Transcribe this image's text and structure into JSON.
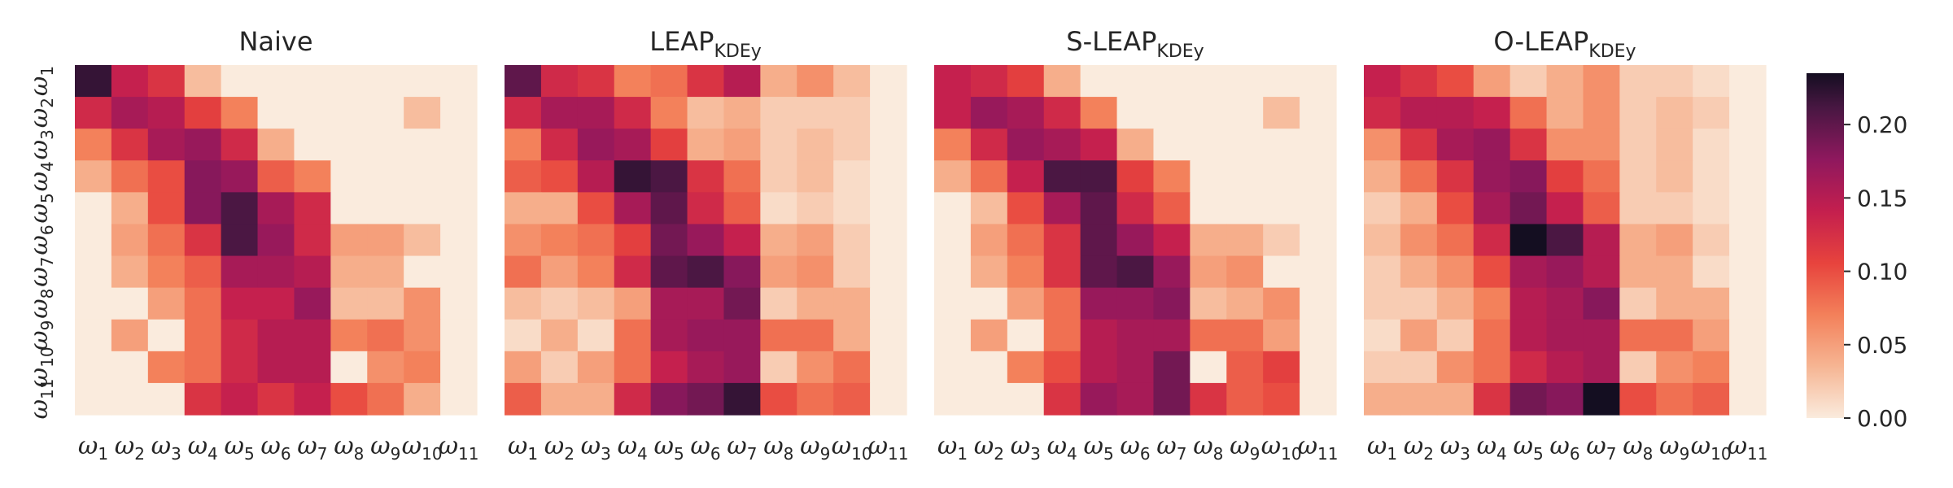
{
  "figure": {
    "colorbar": {
      "colormap": "rocket_r",
      "ticks": [
        "0.00",
        "0.05",
        "0.10",
        "0.15",
        "0.20"
      ],
      "range": [
        0.0,
        0.235
      ]
    }
  },
  "chart_data": [
    {
      "type": "heatmap",
      "title": "Naive",
      "title_subscript": "",
      "x_tick_labels": [
        "ω1",
        "ω2",
        "ω3",
        "ω4",
        "ω5",
        "ω6",
        "ω7",
        "ω8",
        "ω9",
        "ω10",
        "ω11"
      ],
      "y_tick_labels": [
        "ω1",
        "ω2",
        "ω3",
        "ω4",
        "ω5",
        "ω6",
        "ω7",
        "ω8",
        "ω9",
        "ω10",
        "ω11"
      ],
      "values": [
        [
          0.22,
          0.14,
          0.12,
          0.03,
          0.0,
          0.0,
          0.0,
          0.0,
          0.0,
          0.0,
          0.0
        ],
        [
          0.13,
          0.16,
          0.15,
          0.11,
          0.07,
          0.0,
          0.0,
          0.0,
          0.0,
          0.03,
          0.0
        ],
        [
          0.07,
          0.12,
          0.16,
          0.17,
          0.13,
          0.04,
          0.0,
          0.0,
          0.0,
          0.0,
          0.0
        ],
        [
          0.04,
          0.08,
          0.1,
          0.18,
          0.17,
          0.09,
          0.07,
          0.0,
          0.0,
          0.0,
          0.0
        ],
        [
          0.0,
          0.04,
          0.1,
          0.18,
          0.21,
          0.16,
          0.13,
          0.0,
          0.0,
          0.0,
          0.0
        ],
        [
          0.0,
          0.05,
          0.08,
          0.12,
          0.21,
          0.17,
          0.13,
          0.05,
          0.05,
          0.03,
          0.0
        ],
        [
          0.0,
          0.04,
          0.07,
          0.09,
          0.16,
          0.16,
          0.15,
          0.04,
          0.04,
          0.0,
          0.0
        ],
        [
          0.0,
          0.0,
          0.05,
          0.08,
          0.14,
          0.14,
          0.17,
          0.03,
          0.03,
          0.06,
          0.0
        ],
        [
          0.0,
          0.05,
          0.0,
          0.08,
          0.13,
          0.15,
          0.15,
          0.07,
          0.08,
          0.06,
          0.0
        ],
        [
          0.0,
          0.0,
          0.07,
          0.08,
          0.13,
          0.15,
          0.15,
          0.0,
          0.06,
          0.07,
          0.0
        ],
        [
          0.0,
          0.0,
          0.0,
          0.12,
          0.14,
          0.12,
          0.14,
          0.1,
          0.08,
          0.04,
          0.0
        ]
      ]
    },
    {
      "type": "heatmap",
      "title": "LEAP",
      "title_subscript": "KDEy",
      "x_tick_labels": [
        "ω1",
        "ω2",
        "ω3",
        "ω4",
        "ω5",
        "ω6",
        "ω7",
        "ω8",
        "ω9",
        "ω10",
        "ω11"
      ],
      "y_tick_labels": [],
      "values": [
        [
          0.2,
          0.13,
          0.12,
          0.07,
          0.08,
          0.12,
          0.15,
          0.04,
          0.06,
          0.03,
          0.0
        ],
        [
          0.13,
          0.16,
          0.16,
          0.13,
          0.07,
          0.03,
          0.04,
          0.02,
          0.02,
          0.02,
          0.0
        ],
        [
          0.07,
          0.13,
          0.17,
          0.16,
          0.11,
          0.04,
          0.05,
          0.02,
          0.03,
          0.02,
          0.0
        ],
        [
          0.09,
          0.1,
          0.15,
          0.22,
          0.21,
          0.12,
          0.08,
          0.02,
          0.03,
          0.01,
          0.0
        ],
        [
          0.04,
          0.04,
          0.1,
          0.16,
          0.2,
          0.13,
          0.09,
          0.01,
          0.02,
          0.01,
          0.0
        ],
        [
          0.06,
          0.07,
          0.08,
          0.11,
          0.19,
          0.17,
          0.14,
          0.04,
          0.05,
          0.02,
          0.0
        ],
        [
          0.08,
          0.05,
          0.07,
          0.13,
          0.2,
          0.21,
          0.18,
          0.05,
          0.06,
          0.02,
          0.0
        ],
        [
          0.03,
          0.02,
          0.03,
          0.05,
          0.16,
          0.16,
          0.19,
          0.02,
          0.04,
          0.04,
          0.0
        ],
        [
          0.01,
          0.04,
          0.01,
          0.08,
          0.16,
          0.17,
          0.17,
          0.08,
          0.08,
          0.04,
          0.0
        ],
        [
          0.05,
          0.02,
          0.05,
          0.08,
          0.14,
          0.16,
          0.17,
          0.02,
          0.06,
          0.08,
          0.0
        ],
        [
          0.09,
          0.04,
          0.04,
          0.13,
          0.18,
          0.19,
          0.22,
          0.1,
          0.08,
          0.09,
          0.0
        ]
      ]
    },
    {
      "type": "heatmap",
      "title": "S-LEAP",
      "title_subscript": "KDEy",
      "x_tick_labels": [
        "ω1",
        "ω2",
        "ω3",
        "ω4",
        "ω5",
        "ω6",
        "ω7",
        "ω8",
        "ω9",
        "ω10",
        "ω11"
      ],
      "y_tick_labels": [],
      "values": [
        [
          0.14,
          0.13,
          0.11,
          0.04,
          0.0,
          0.0,
          0.0,
          0.0,
          0.0,
          0.0,
          0.0
        ],
        [
          0.14,
          0.17,
          0.16,
          0.13,
          0.07,
          0.0,
          0.0,
          0.0,
          0.0,
          0.03,
          0.0
        ],
        [
          0.07,
          0.13,
          0.17,
          0.16,
          0.14,
          0.04,
          0.0,
          0.0,
          0.0,
          0.0,
          0.0
        ],
        [
          0.04,
          0.08,
          0.14,
          0.21,
          0.21,
          0.11,
          0.07,
          0.0,
          0.0,
          0.0,
          0.0
        ],
        [
          0.0,
          0.03,
          0.1,
          0.16,
          0.2,
          0.13,
          0.09,
          0.0,
          0.0,
          0.0,
          0.0
        ],
        [
          0.0,
          0.05,
          0.08,
          0.12,
          0.2,
          0.17,
          0.14,
          0.04,
          0.04,
          0.02,
          0.0
        ],
        [
          0.0,
          0.04,
          0.07,
          0.12,
          0.2,
          0.21,
          0.17,
          0.05,
          0.06,
          0.0,
          0.0
        ],
        [
          0.0,
          0.0,
          0.05,
          0.08,
          0.17,
          0.17,
          0.18,
          0.03,
          0.04,
          0.06,
          0.0
        ],
        [
          0.0,
          0.05,
          0.0,
          0.08,
          0.15,
          0.16,
          0.16,
          0.08,
          0.08,
          0.05,
          0.0
        ],
        [
          0.0,
          0.0,
          0.07,
          0.1,
          0.15,
          0.16,
          0.19,
          0.0,
          0.09,
          0.11,
          0.0
        ],
        [
          0.0,
          0.0,
          0.0,
          0.12,
          0.17,
          0.16,
          0.19,
          0.12,
          0.09,
          0.1,
          0.0
        ]
      ]
    },
    {
      "type": "heatmap",
      "title": "O-LEAP",
      "title_subscript": "KDEy",
      "x_tick_labels": [
        "ω1",
        "ω2",
        "ω3",
        "ω4",
        "ω5",
        "ω6",
        "ω7",
        "ω8",
        "ω9",
        "ω10",
        "ω11"
      ],
      "y_tick_labels": [],
      "values": [
        [
          0.14,
          0.12,
          0.1,
          0.05,
          0.02,
          0.04,
          0.06,
          0.02,
          0.02,
          0.01,
          0.0
        ],
        [
          0.13,
          0.15,
          0.15,
          0.14,
          0.08,
          0.04,
          0.06,
          0.02,
          0.03,
          0.02,
          0.0
        ],
        [
          0.06,
          0.12,
          0.16,
          0.17,
          0.12,
          0.06,
          0.06,
          0.02,
          0.03,
          0.01,
          0.0
        ],
        [
          0.04,
          0.08,
          0.12,
          0.17,
          0.18,
          0.11,
          0.08,
          0.02,
          0.03,
          0.01,
          0.0
        ],
        [
          0.02,
          0.04,
          0.1,
          0.16,
          0.19,
          0.14,
          0.09,
          0.02,
          0.02,
          0.01,
          0.0
        ],
        [
          0.03,
          0.06,
          0.08,
          0.13,
          0.24,
          0.21,
          0.15,
          0.04,
          0.05,
          0.02,
          0.0
        ],
        [
          0.02,
          0.04,
          0.06,
          0.1,
          0.16,
          0.17,
          0.15,
          0.04,
          0.04,
          0.01,
          0.0
        ],
        [
          0.02,
          0.02,
          0.04,
          0.07,
          0.15,
          0.16,
          0.18,
          0.02,
          0.04,
          0.04,
          0.0
        ],
        [
          0.01,
          0.05,
          0.02,
          0.08,
          0.15,
          0.16,
          0.16,
          0.08,
          0.08,
          0.05,
          0.0
        ],
        [
          0.02,
          0.02,
          0.06,
          0.08,
          0.13,
          0.15,
          0.16,
          0.02,
          0.06,
          0.07,
          0.0
        ],
        [
          0.04,
          0.04,
          0.04,
          0.12,
          0.19,
          0.18,
          0.24,
          0.1,
          0.08,
          0.09,
          0.0
        ]
      ]
    }
  ]
}
